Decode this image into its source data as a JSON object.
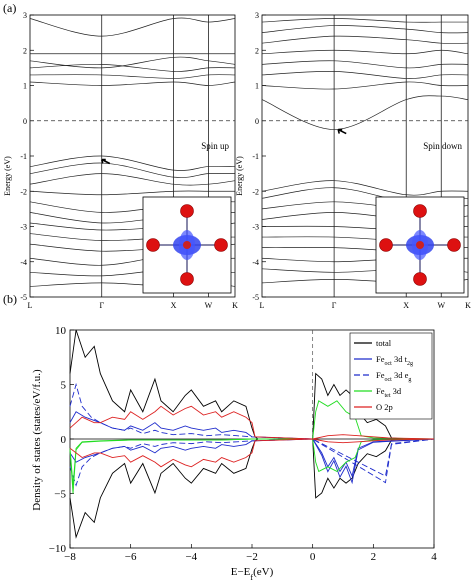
{
  "panel_a_label": "(a)",
  "panel_b_label": "(b)",
  "chart_data": [
    {
      "type": "line",
      "name_visible": "",
      "annotation": "Spin up",
      "ylabel": "Energy (eV)",
      "ylim": [
        -5,
        3
      ],
      "yticks": [
        "3",
        "2",
        "1",
        "0",
        "-1",
        "-2",
        "-3",
        "-4",
        "-5"
      ],
      "kpoints": [
        "L",
        "Γ",
        "X",
        "W",
        "K"
      ],
      "kpoint_positions": [
        0,
        0.35,
        0.7,
        0.87,
        1.0
      ],
      "fermi_level": 0,
      "highlight_arrow_energy": -1.1,
      "bands": [
        {
          "x": [
            0,
            0.35,
            0.7,
            0.87,
            1.0
          ],
          "y": [
            2.9,
            2.4,
            2.9,
            2.8,
            2.9
          ]
        },
        {
          "x": [
            0,
            0.35,
            0.7,
            0.87,
            1.0
          ],
          "y": [
            1.9,
            1.9,
            1.9,
            1.9,
            1.9
          ]
        },
        {
          "x": [
            0,
            0.35,
            0.7,
            0.87,
            1.0
          ],
          "y": [
            1.7,
            1.5,
            1.8,
            1.7,
            1.6
          ]
        },
        {
          "x": [
            0,
            0.35,
            0.7,
            0.87,
            1.0
          ],
          "y": [
            1.5,
            1.6,
            1.4,
            1.5,
            1.5
          ]
        },
        {
          "x": [
            0,
            0.35,
            0.7,
            0.87,
            1.0
          ],
          "y": [
            1.3,
            1.3,
            1.2,
            1.3,
            1.3
          ]
        },
        {
          "x": [
            0,
            0.35,
            0.7,
            0.87,
            1.0
          ],
          "y": [
            1.1,
            1.0,
            1.1,
            1.0,
            1.1
          ]
        },
        {
          "x": [
            0,
            0.35,
            0.7,
            0.87,
            1.0
          ],
          "y": [
            -1.3,
            -1.0,
            -1.4,
            -1.3,
            -1.3
          ]
        },
        {
          "x": [
            0,
            0.35,
            0.7,
            0.87,
            1.0
          ],
          "y": [
            -1.5,
            -1.2,
            -1.6,
            -1.5,
            -1.5
          ]
        },
        {
          "x": [
            0,
            0.35,
            0.7,
            0.87,
            1.0
          ],
          "y": [
            -1.8,
            -1.5,
            -1.8,
            -1.8,
            -1.7
          ]
        },
        {
          "x": [
            0,
            0.35,
            0.7,
            0.87,
            1.0
          ],
          "y": [
            -2.0,
            -2.1,
            -2.0,
            -2.0,
            -2.0
          ]
        },
        {
          "x": [
            0,
            0.35,
            0.7,
            0.87,
            1.0
          ],
          "y": [
            -2.3,
            -2.6,
            -2.4,
            -2.3,
            -2.3
          ]
        },
        {
          "x": [
            0,
            0.35,
            0.7,
            0.87,
            1.0
          ],
          "y": [
            -2.6,
            -2.9,
            -2.7,
            -2.6,
            -2.6
          ]
        },
        {
          "x": [
            0,
            0.35,
            0.7,
            0.87,
            1.0
          ],
          "y": [
            -2.9,
            -3.1,
            -3.0,
            -3.0,
            -2.9
          ]
        },
        {
          "x": [
            0,
            0.35,
            0.7,
            0.87,
            1.0
          ],
          "y": [
            -3.2,
            -3.4,
            -3.3,
            -3.3,
            -3.3
          ]
        },
        {
          "x": [
            0,
            0.35,
            0.7,
            0.87,
            1.0
          ],
          "y": [
            -3.5,
            -3.7,
            -3.6,
            -3.6,
            -3.5
          ]
        },
        {
          "x": [
            0,
            0.35,
            0.7,
            0.87,
            1.0
          ],
          "y": [
            -3.9,
            -4.1,
            -3.8,
            -3.9,
            -3.9
          ]
        },
        {
          "x": [
            0,
            0.35,
            0.7,
            0.87,
            1.0
          ],
          "y": [
            -4.3,
            -4.4,
            -4.2,
            -4.3,
            -4.3
          ]
        },
        {
          "x": [
            0,
            0.35,
            0.7,
            0.87,
            1.0
          ],
          "y": [
            -4.7,
            -4.6,
            -4.7,
            -4.6,
            -4.7
          ]
        }
      ]
    },
    {
      "type": "line",
      "annotation": "Spin down",
      "ylim": [
        -5,
        3
      ],
      "yticks": [
        "3",
        "2",
        "1",
        "0",
        "-1",
        "-2",
        "-3",
        "-4",
        "-5"
      ],
      "kpoints": [
        "L",
        "Γ",
        "X",
        "W",
        "K"
      ],
      "kpoint_positions": [
        0,
        0.35,
        0.7,
        0.87,
        1.0
      ],
      "fermi_level": 0,
      "highlight_arrow_energy": -0.25,
      "bands": [
        {
          "x": [
            0,
            0.35,
            0.7,
            0.87,
            1.0
          ],
          "y": [
            2.8,
            2.9,
            2.8,
            2.8,
            2.8
          ]
        },
        {
          "x": [
            0,
            0.35,
            0.7,
            0.87,
            1.0
          ],
          "y": [
            2.5,
            2.7,
            2.6,
            2.5,
            2.5
          ]
        },
        {
          "x": [
            0,
            0.35,
            0.7,
            0.87,
            1.0
          ],
          "y": [
            2.2,
            2.4,
            2.3,
            2.2,
            2.2
          ]
        },
        {
          "x": [
            0,
            0.35,
            0.7,
            0.87,
            1.0
          ],
          "y": [
            1.9,
            2.0,
            1.9,
            2.0,
            1.9
          ]
        },
        {
          "x": [
            0,
            0.35,
            0.7,
            0.87,
            1.0
          ],
          "y": [
            1.6,
            1.7,
            1.5,
            1.6,
            1.6
          ]
        },
        {
          "x": [
            0,
            0.35,
            0.7,
            0.87,
            1.0
          ],
          "y": [
            1.3,
            1.4,
            1.2,
            1.3,
            1.3
          ]
        },
        {
          "x": [
            0,
            0.35,
            0.7,
            0.87,
            1.0
          ],
          "y": [
            1.0,
            0.9,
            1.1,
            1.0,
            1.0
          ]
        },
        {
          "x": [
            0,
            0.35,
            0.7,
            0.87,
            1.0
          ],
          "y": [
            0.6,
            -0.25,
            0.6,
            0.7,
            0.6
          ]
        },
        {
          "x": [
            0,
            0.35,
            0.7,
            0.87,
            1.0
          ],
          "y": [
            -2.0,
            -1.7,
            -2.1,
            -2.0,
            -2.0
          ]
        },
        {
          "x": [
            0,
            0.35,
            0.7,
            0.87,
            1.0
          ],
          "y": [
            -2.2,
            -1.9,
            -2.3,
            -2.2,
            -2.2
          ]
        },
        {
          "x": [
            0,
            0.35,
            0.7,
            0.87,
            1.0
          ],
          "y": [
            -2.5,
            -2.3,
            -2.5,
            -2.5,
            -2.4
          ]
        },
        {
          "x": [
            0,
            0.35,
            0.7,
            0.87,
            1.0
          ],
          "y": [
            -2.8,
            -2.6,
            -2.8,
            -2.8,
            -2.7
          ]
        },
        {
          "x": [
            0,
            0.35,
            0.7,
            0.87,
            1.0
          ],
          "y": [
            -3.0,
            -3.0,
            -3.1,
            -3.0,
            -3.0
          ]
        },
        {
          "x": [
            0,
            0.35,
            0.7,
            0.87,
            1.0
          ],
          "y": [
            -3.3,
            -3.3,
            -3.4,
            -3.3,
            -3.3
          ]
        },
        {
          "x": [
            0,
            0.35,
            0.7,
            0.87,
            1.0
          ],
          "y": [
            -3.6,
            -3.6,
            -3.7,
            -3.6,
            -3.6
          ]
        },
        {
          "x": [
            0,
            0.35,
            0.7,
            0.87,
            1.0
          ],
          "y": [
            -3.9,
            -4.0,
            -3.9,
            -3.9,
            -3.9
          ]
        },
        {
          "x": [
            0,
            0.35,
            0.7,
            0.87,
            1.0
          ],
          "y": [
            -4.2,
            -4.3,
            -4.2,
            -4.2,
            -4.3
          ]
        },
        {
          "x": [
            0,
            0.35,
            0.7,
            0.87,
            1.0
          ],
          "y": [
            -4.6,
            -4.5,
            -4.6,
            -4.6,
            -4.5
          ]
        }
      ]
    },
    {
      "type": "line",
      "xlabel": "E−E",
      "xlabel_sub": "f",
      "xlabel_unit": "(eV)",
      "ylabel": "Density of states (states/eV/f.u.)",
      "xlim": [
        -8,
        4
      ],
      "ylim": [
        -10,
        10
      ],
      "xticks": [
        -8,
        -6,
        -4,
        -2,
        0,
        2,
        4
      ],
      "yticks": [
        10,
        5,
        0,
        -5,
        -10
      ],
      "fermi_level": 0,
      "legend_position": "top-right",
      "series": [
        {
          "name": "total",
          "name_sub": "",
          "name_suffix": "",
          "color": "#000000",
          "dash": "",
          "x": [
            -8,
            -7.8,
            -7.5,
            -7.2,
            -7,
            -6.6,
            -6.2,
            -6,
            -5.6,
            -5.2,
            -5,
            -4.6,
            -4.2,
            -4,
            -3.6,
            -3.2,
            -3,
            -2.6,
            -2.2,
            -2,
            -1.9,
            -1.8,
            0,
            0.1,
            0.3,
            0.5,
            0.7,
            0.9,
            1.1,
            1.3,
            1.5,
            1.8,
            2.1,
            2.4,
            2.6,
            3,
            4
          ],
          "y": [
            6,
            10,
            7.5,
            8.5,
            6,
            3.5,
            2.5,
            4.5,
            2.5,
            5.5,
            3.5,
            2.5,
            4,
            4.5,
            3,
            3.5,
            2.5,
            3.5,
            3,
            1,
            0.2,
            0,
            0,
            6,
            5.5,
            4,
            5,
            4,
            4.5,
            4,
            2.5,
            1.5,
            1.8,
            1.2,
            0.1,
            0,
            0
          ]
        },
        {
          "name": "Fe",
          "name_sub": "oct",
          "name_suffix": " 3d t",
          "name_sub2": "2g",
          "color": "#1f2ccc",
          "dash": "",
          "x": [
            -8,
            -7.8,
            -7.5,
            -7,
            -6.6,
            -6.2,
            -6,
            -5.6,
            -5.2,
            -5,
            -4.6,
            -4.2,
            -4,
            -3.6,
            -3.2,
            -3,
            -2.6,
            -2.2,
            -2,
            0,
            0.1,
            0.3,
            0.5,
            0.7,
            0.9,
            1.1,
            1.3,
            1.5,
            2,
            4
          ],
          "y": [
            1.5,
            2.5,
            2,
            1.5,
            1,
            0.8,
            1.2,
            0.8,
            1.5,
            1,
            0.8,
            1.2,
            1,
            0.8,
            1,
            0.6,
            0.8,
            0.6,
            0.2,
            0,
            -0.5,
            -1.5,
            -3,
            -2,
            -3.5,
            -2.5,
            -4,
            -1,
            -0.3,
            0
          ]
        },
        {
          "name": "Fe",
          "name_sub": "oct",
          "name_suffix": " 3d e",
          "name_sub2": "g",
          "color": "#1f2ccc",
          "dash": "6,3",
          "x": [
            -8,
            -7.8,
            -7.6,
            -7.3,
            -7,
            -6.6,
            -6.2,
            -6,
            -5.6,
            -5.2,
            -5,
            -4.6,
            -4,
            -3.5,
            -3,
            -2.5,
            -2,
            0,
            0.3,
            0.6,
            0.9,
            1.2,
            1.5,
            1.8,
            2.1,
            2.4,
            2.6,
            4
          ],
          "y": [
            3,
            5,
            3,
            2,
            1.5,
            1,
            0.8,
            1,
            0.5,
            0.8,
            0.6,
            0.4,
            0.5,
            0.3,
            0.4,
            0.3,
            0.2,
            0,
            -0.5,
            -1,
            -1.5,
            -2,
            -2.5,
            -3,
            -3.5,
            -4,
            -0.5,
            0
          ]
        },
        {
          "name": "Fe",
          "name_sub": "tet",
          "name_suffix": " 3d",
          "name_sub2": "",
          "color": "#22dd22",
          "dash": "",
          "x": [
            -8,
            -7.9,
            -7.8,
            -7.6,
            -7,
            -6,
            -5,
            -4,
            -3,
            -2.5,
            -2,
            0,
            0.1,
            0.2,
            0.5,
            0.8,
            1.1,
            1.4,
            1.6,
            2,
            4
          ],
          "y": [
            -1,
            -5,
            -1,
            -0.3,
            -0.2,
            -0.1,
            -0.1,
            -0.1,
            -0.1,
            -0.05,
            0,
            0,
            2.5,
            3.5,
            3,
            3.5,
            2.5,
            2,
            0.3,
            0.1,
            0
          ]
        },
        {
          "name": "O 2p",
          "name_sub": "",
          "name_suffix": "",
          "name_sub2": "",
          "color": "#dd2222",
          "dash": "",
          "x": [
            -8,
            -7.6,
            -7.2,
            -7,
            -6.6,
            -6.2,
            -6,
            -5.6,
            -5.2,
            -5,
            -4.6,
            -4.2,
            -4,
            -3.6,
            -3.2,
            -3,
            -2.6,
            -2.2,
            -2,
            -1.9,
            0,
            0.5,
            1,
            1.5,
            2,
            2.5,
            4
          ],
          "y": [
            1,
            2,
            1.5,
            1.5,
            2,
            1.8,
            2.5,
            1.8,
            2.5,
            3,
            2.2,
            2.8,
            3,
            2.2,
            2.5,
            2,
            2.5,
            2,
            1.5,
            0.2,
            0,
            0.3,
            0.4,
            0.3,
            0.2,
            0.1,
            0
          ]
        }
      ]
    }
  ]
}
